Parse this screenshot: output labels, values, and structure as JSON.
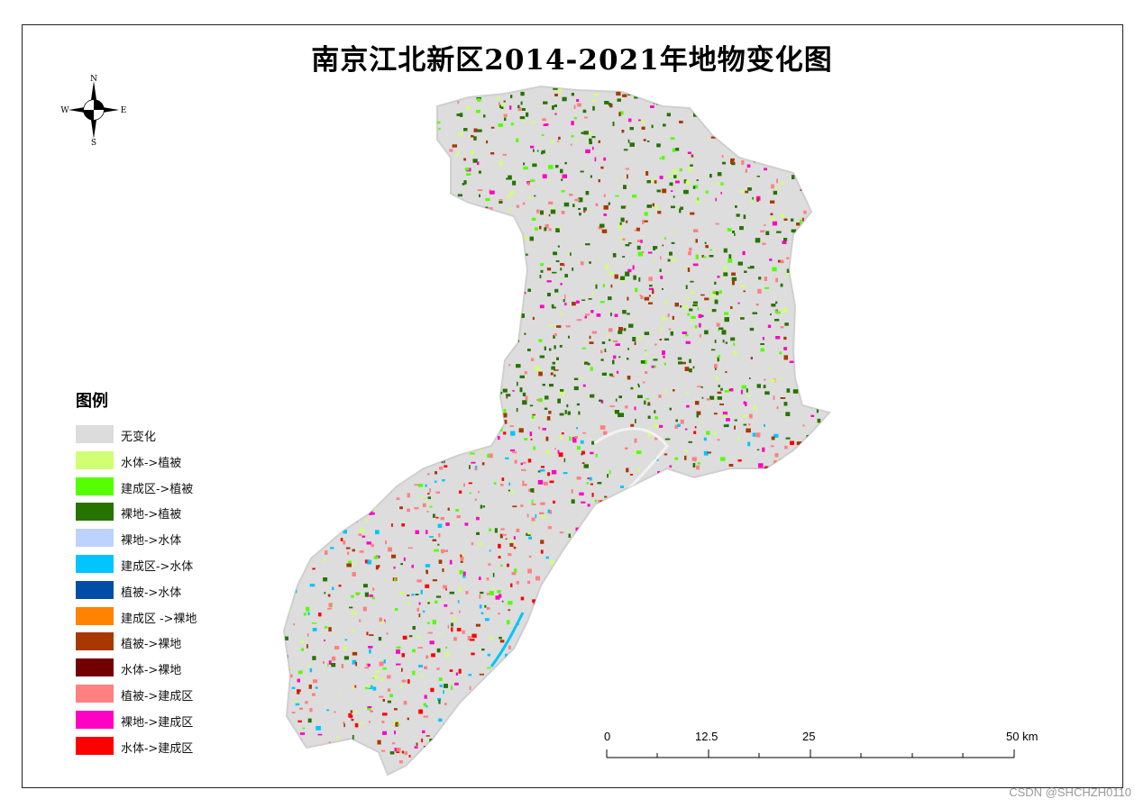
{
  "title": "南京江北新区2014-2021年地物变化图",
  "north_arrow": {
    "n": "N",
    "s": "S",
    "e": "E",
    "w": "W"
  },
  "legend": {
    "title": "图例",
    "items": [
      {
        "label": "无变化",
        "color": "#dcdcdc"
      },
      {
        "label": "水体->植被",
        "color": "#d1ff73"
      },
      {
        "label": "建成区->植被",
        "color": "#55ff00"
      },
      {
        "label": "裸地->植被",
        "color": "#267300"
      },
      {
        "label": "裸地->水体",
        "color": "#bed2ff"
      },
      {
        "label": "建成区->水体",
        "color": "#00c5ff"
      },
      {
        "label": "植被->水体",
        "color": "#004da8"
      },
      {
        "label": "建成区 ->裸地",
        "color": "#ff8200"
      },
      {
        "label": "植被->裸地",
        "color": "#a83800"
      },
      {
        "label": "水体->裸地",
        "color": "#730000"
      },
      {
        "label": "植被->建成区",
        "color": "#ff8080"
      },
      {
        "label": "裸地->建成区",
        "color": "#ff00c5"
      },
      {
        "label": "水体->建成区",
        "color": "#ff0000"
      }
    ]
  },
  "scale_bar": {
    "labels": [
      "0",
      "12.5",
      "25",
      "50 km"
    ]
  },
  "watermark": "CSDN @SHCHZH0110"
}
